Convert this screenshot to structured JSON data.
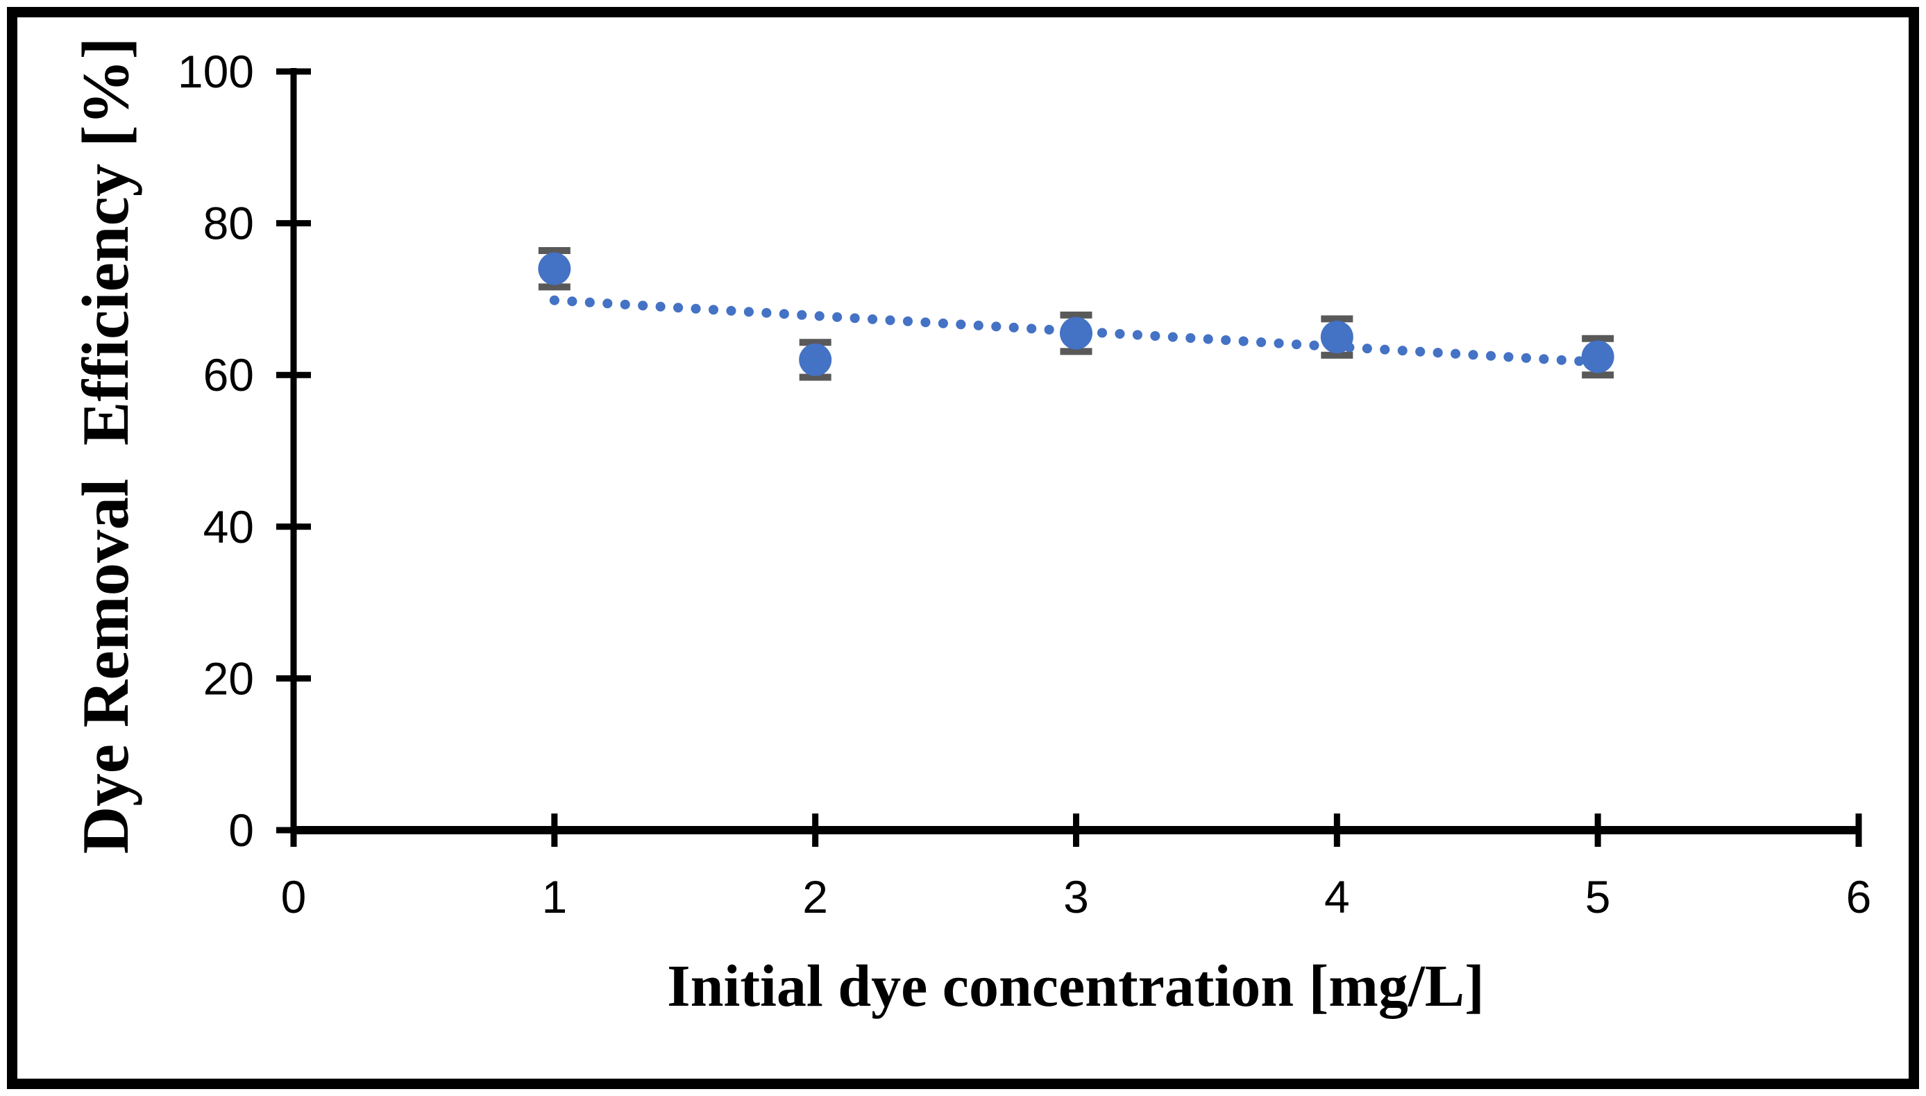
{
  "chart_data": {
    "type": "scatter",
    "title": "",
    "xlabel": "Initial dye concentration [mg/L]",
    "ylabel": "Dye Removal  Efficiency [%]",
    "series": [
      {
        "name": "dye-removal-efficiency",
        "x": [
          1,
          2,
          3,
          4,
          5
        ],
        "y": [
          74,
          62,
          65.5,
          65,
          62.4
        ],
        "y_error": [
          2.4,
          2.3,
          2.4,
          2.4,
          2.4
        ]
      }
    ],
    "trendline": {
      "type": "linear",
      "style": "dotted",
      "slope": -2.04,
      "intercept": 71.88,
      "x_start": 1,
      "x_end": 5
    },
    "xlim": [
      0,
      6
    ],
    "ylim": [
      0,
      100
    ],
    "x_ticks": [
      0,
      1,
      2,
      3,
      4,
      5,
      6
    ],
    "y_ticks": [
      0,
      20,
      40,
      60,
      80,
      100
    ],
    "grid": false,
    "legend": false,
    "colors": {
      "marker": "#4472C4",
      "trendline": "#4472C4",
      "error_bar": "#595959",
      "axis": "#000000",
      "frame": "#000000",
      "background": "#ffffff"
    }
  }
}
